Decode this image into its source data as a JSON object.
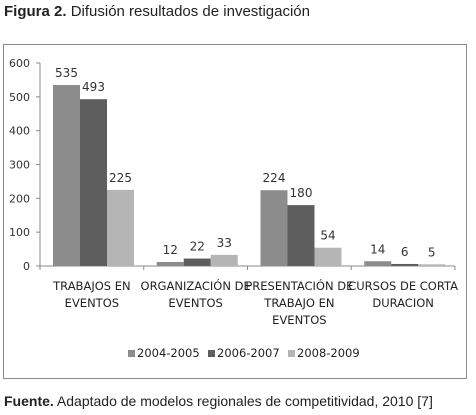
{
  "figure": {
    "label": "Figura 2.",
    "title": "Difusión resultados de investigación"
  },
  "source": {
    "label": "Fuente.",
    "text": "Adaptado de modelos regionales de competitividad, 2010 [7]"
  },
  "chart_data": {
    "type": "bar",
    "title": "",
    "xlabel": "",
    "ylabel": "",
    "ylim": [
      0,
      600
    ],
    "yticks": [
      0,
      100,
      200,
      300,
      400,
      500,
      600
    ],
    "grid": false,
    "legend_position": "bottom",
    "categories": [
      [
        "TRABAJOS EN",
        "EVENTOS"
      ],
      [
        "ORGANIZACIÓN DE",
        "EVENTOS"
      ],
      [
        "PRESENTACIÓN DE",
        "TRABAJO EN",
        "EVENTOS"
      ],
      [
        "CURSOS DE CORTA",
        "DURACION"
      ]
    ],
    "series": [
      {
        "name": "2004-2005",
        "color": "#8c8c8c",
        "values": [
          535,
          12,
          224,
          14
        ]
      },
      {
        "name": "2006-2007",
        "color": "#5e5e5e",
        "values": [
          493,
          22,
          180,
          6
        ]
      },
      {
        "name": "2008-2009",
        "color": "#b5b5b5",
        "values": [
          225,
          33,
          54,
          5
        ]
      }
    ]
  }
}
